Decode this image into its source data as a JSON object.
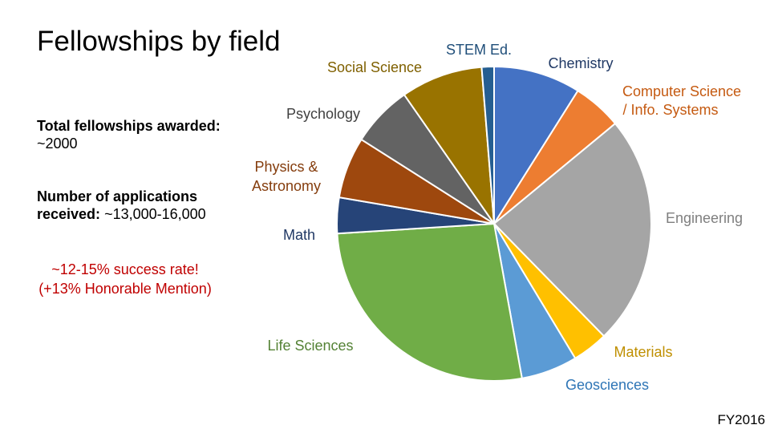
{
  "slide": {
    "title": "Fellowships by field",
    "total_label": "Total fellowships awarded:",
    "total_value": "~2000",
    "apps_label": "Number of applications received:",
    "apps_value": "~13,000-16,000",
    "success_line1": "~12-15% success rate!",
    "success_line2": "(+13% Honorable Mention)",
    "footer": "FY2016",
    "accent_color": "#c00000"
  },
  "chart_data": {
    "type": "pie",
    "title": "",
    "slices": [
      {
        "label": "Chemistry",
        "value": 8.5,
        "color": "#4472c4",
        "label_color": "#1f3864"
      },
      {
        "label": "Computer Science / Info. Systems",
        "value": 4.8,
        "color": "#ed7d31",
        "label_color": "#c55a11"
      },
      {
        "label": "Engineering",
        "value": 22.5,
        "color": "#a5a5a5",
        "label_color": "#7f7f7f"
      },
      {
        "label": "Materials",
        "value": 3.5,
        "color": "#ffc000",
        "label_color": "#bf8f00"
      },
      {
        "label": "Geosciences",
        "value": 5.5,
        "color": "#5b9bd5",
        "label_color": "#2e75b6"
      },
      {
        "label": "Life Sciences",
        "value": 25.5,
        "color": "#70ad47",
        "label_color": "#548235"
      },
      {
        "label": "Math",
        "value": 3.5,
        "color": "#264478",
        "label_color": "#203864"
      },
      {
        "label": "Physics & Astronomy",
        "value": 6.0,
        "color": "#9e480e",
        "label_color": "#843c0c"
      },
      {
        "label": "Psychology",
        "value": 6.0,
        "color": "#636363",
        "label_color": "#404040"
      },
      {
        "label": "Social Science",
        "value": 8.0,
        "color": "#997300",
        "label_color": "#7f6000"
      },
      {
        "label": "STEM Ed.",
        "value": 1.2,
        "color": "#255e91",
        "label_color": "#1f4e79"
      }
    ]
  }
}
